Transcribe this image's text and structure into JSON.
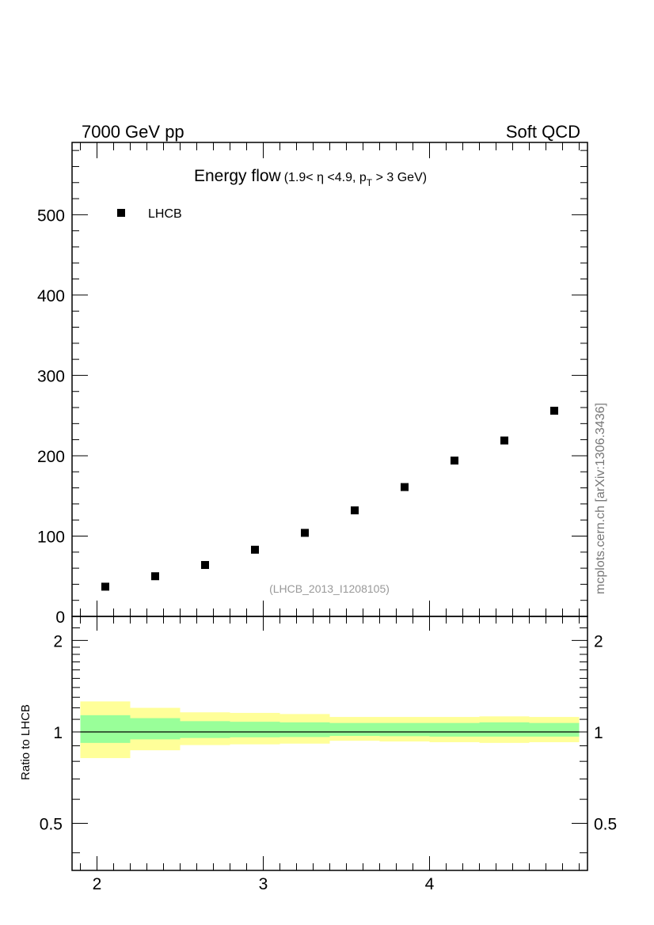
{
  "header": {
    "left": "7000 GeV pp",
    "right": "Soft QCD"
  },
  "watermark": "mcplots.cern.ch [arXiv:1306.3436]",
  "chart_data": [
    {
      "type": "scatter",
      "title_main": "Energy flow",
      "title_cuts_pre": "(1.9< η <4.9, p",
      "title_cuts_sub": "T",
      "title_cuts_post": " > 3 GeV)",
      "analysis_label": "(LHCB_2013_I1208105)",
      "xlim": [
        1.85,
        4.95
      ],
      "ylim": [
        0,
        590
      ],
      "x_ticks": [
        2,
        3,
        4
      ],
      "y_ticks": [
        0,
        100,
        200,
        300,
        400,
        500
      ],
      "legend_placement": "top-left",
      "series": [
        {
          "name": "LHCB",
          "color": "#000000",
          "marker": "square",
          "x": [
            2.05,
            2.35,
            2.65,
            2.95,
            3.25,
            3.55,
            3.85,
            4.15,
            4.45,
            4.75
          ],
          "y": [
            37,
            50,
            64,
            83,
            104,
            132,
            161,
            194,
            219,
            256
          ]
        }
      ]
    },
    {
      "type": "area",
      "ylabel": "Ratio to LHCB",
      "xlim": [
        1.85,
        4.95
      ],
      "ylim": [
        0.35,
        2.4
      ],
      "scale": "log",
      "x_ticks": [
        2,
        3,
        4
      ],
      "y_ticks": [
        0.5,
        1,
        2
      ],
      "reference_line": 1,
      "bins": [
        1.9,
        2.2,
        2.5,
        2.8,
        3.1,
        3.4,
        3.7,
        4.0,
        4.3,
        4.6,
        4.9
      ],
      "bands": [
        {
          "color": "#ffff99",
          "low": [
            0.82,
            0.87,
            0.905,
            0.91,
            0.915,
            0.935,
            0.93,
            0.925,
            0.92,
            0.925
          ],
          "high": [
            1.26,
            1.2,
            1.16,
            1.155,
            1.145,
            1.12,
            1.12,
            1.12,
            1.125,
            1.12
          ]
        },
        {
          "color": "#99ff99",
          "low": [
            0.92,
            0.945,
            0.955,
            0.96,
            0.962,
            0.97,
            0.968,
            0.965,
            0.965,
            0.965
          ],
          "high": [
            1.135,
            1.11,
            1.085,
            1.08,
            1.075,
            1.07,
            1.07,
            1.07,
            1.075,
            1.07
          ]
        }
      ]
    }
  ]
}
